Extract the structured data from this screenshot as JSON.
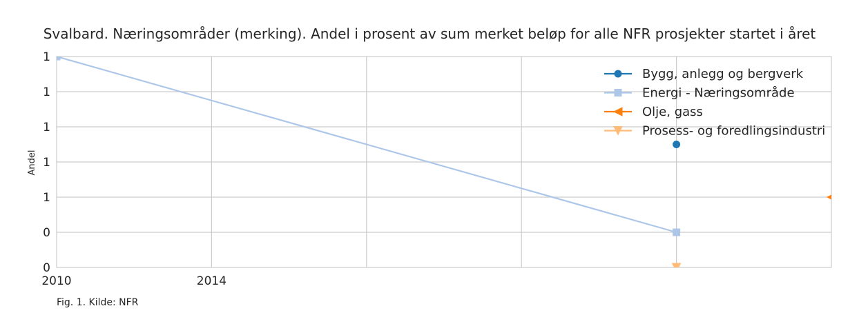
{
  "chart_data": {
    "type": "line",
    "title": "Svalbard. Næringsområder (merking). Andel i prosent av sum merket beløp for alle NFR prosjekter startet i året",
    "ylabel": "Andel",
    "x_tick_labels": [
      "2010",
      "2014"
    ],
    "y_tick_labels": [
      "0",
      "0",
      "1",
      "1",
      "1",
      "1",
      "1"
    ],
    "xlim": [
      2010,
      2030
    ],
    "ylim": [
      0,
      1.2
    ],
    "grid": true,
    "legend_position": "top-right",
    "series": [
      {
        "name": "Bygg, anlegg og bergverk",
        "color": "#1f77b4",
        "marker": "circle",
        "x": [
          2026
        ],
        "y": [
          0.7
        ]
      },
      {
        "name": "Energi - Næringsområde",
        "color": "#aec7e8",
        "marker": "square",
        "x": [
          2010,
          2026
        ],
        "y": [
          1.2,
          0.2
        ]
      },
      {
        "name": "Olje, gass",
        "color": "#ff7f0e",
        "marker": "triangle-left",
        "x": [
          2030
        ],
        "y": [
          0.4
        ]
      },
      {
        "name": "Prosess- og foredlingsindustri",
        "color": "#ffbb78",
        "marker": "triangle-down",
        "x": [
          2026
        ],
        "y": [
          0.0
        ]
      }
    ],
    "caption": "Fig. 1. Kilde: NFR"
  }
}
